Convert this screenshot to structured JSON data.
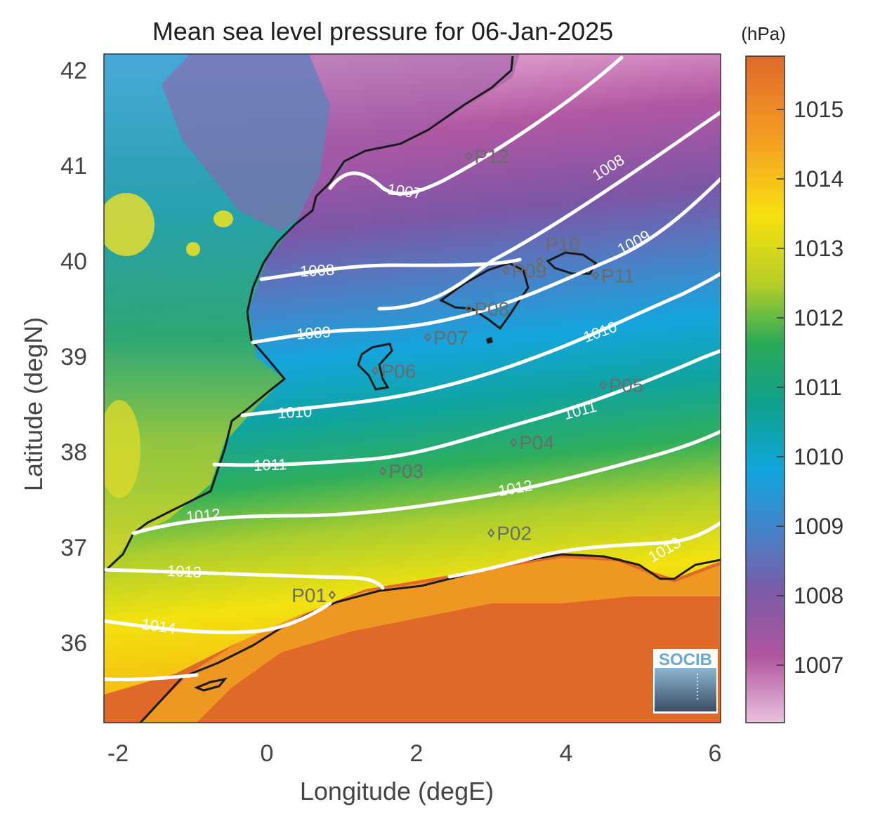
{
  "title": "Mean sea level pressure for 06-Jan-2025",
  "xlabel": "Longitude (degE)",
  "ylabel": "Latitude (degN)",
  "x_ticks": [
    "-2",
    "0",
    "2",
    "4",
    "6"
  ],
  "y_ticks": [
    "42",
    "41",
    "40",
    "39",
    "38",
    "37",
    "36"
  ],
  "colorbar": {
    "unit": "(hPa)",
    "ticks": [
      "1015",
      "1014",
      "1013",
      "1012",
      "1011",
      "1010",
      "1009",
      "1008",
      "1007"
    ]
  },
  "stations": [
    {
      "name": "P01",
      "lon": 0.87,
      "lat": 36.5
    },
    {
      "name": "P02",
      "lon": 3.0,
      "lat": 37.15
    },
    {
      "name": "P03",
      "lon": 1.55,
      "lat": 37.8
    },
    {
      "name": "P04",
      "lon": 3.3,
      "lat": 38.1
    },
    {
      "name": "P05",
      "lon": 4.5,
      "lat": 38.7
    },
    {
      "name": "P06",
      "lon": 1.45,
      "lat": 38.85
    },
    {
      "name": "P07",
      "lon": 2.15,
      "lat": 39.2
    },
    {
      "name": "P08",
      "lon": 2.7,
      "lat": 39.5
    },
    {
      "name": "P09",
      "lon": 3.2,
      "lat": 39.9
    },
    {
      "name": "P10",
      "lon": 3.65,
      "lat": 40.0
    },
    {
      "name": "P11",
      "lon": 4.4,
      "lat": 39.85
    },
    {
      "name": "P12",
      "lon": 2.7,
      "lat": 41.1
    }
  ],
  "contour_labels": [
    "1007",
    "1008",
    "1008",
    "1009",
    "1009",
    "1010",
    "1010",
    "1011",
    "1011",
    "1012",
    "1012",
    "1013",
    "1013",
    "1014"
  ],
  "logo": "SOCIB",
  "colors": {
    "colormap_high": "#e0692a",
    "colormap_low": "#eac2dd",
    "contour": "#ffffff",
    "coastline": "#1a1a1a"
  }
}
